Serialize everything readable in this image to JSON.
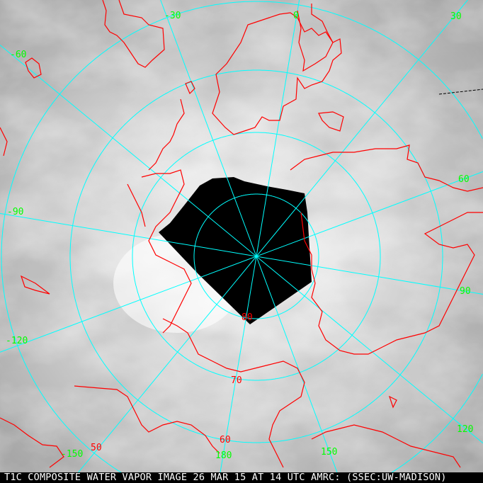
{
  "caption": "T1C COMPOSITE WATER VAPOR IMAGE 26 MAR 15 AT 14 UTC AMRC: (SSEC:UW-MADISON)",
  "colors": {
    "graticule": "#00ffff",
    "coastline": "#ff0000",
    "longitude_label": "#00ff00",
    "latitude_label": "#ff0000",
    "no_data": "#000000"
  },
  "projection": "polar stereographic, north pole",
  "longitude_labels": [
    "-30",
    "0",
    "30",
    "-60",
    "60",
    "-90",
    "90",
    "-120",
    "120",
    "-150",
    "150",
    "180"
  ],
  "latitude_labels": [
    "80",
    "70",
    "60",
    "50"
  ]
}
